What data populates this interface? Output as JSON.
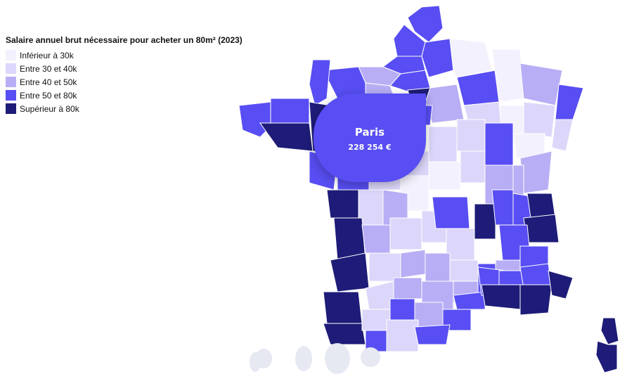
{
  "legend": {
    "title": "Salaire annuel brut nécessaire pour acheter un 80m² (2023)",
    "items": [
      {
        "label": "Inférieur à 30k",
        "color": "#f3f1fd"
      },
      {
        "label": "Entre 30 et 40k",
        "color": "#dcd7fa"
      },
      {
        "label": "Entre 40 et 50k",
        "color": "#b8aef5"
      },
      {
        "label": "Entre 50 et 80k",
        "color": "#584ef3"
      },
      {
        "label": "Supérieur à 80k",
        "color": "#1e1c78"
      }
    ]
  },
  "tooltip": {
    "title": "Paris",
    "value": "228 254 €"
  },
  "colors": {
    "overseas": "#e6e8f2",
    "background": "#ffffff"
  }
}
